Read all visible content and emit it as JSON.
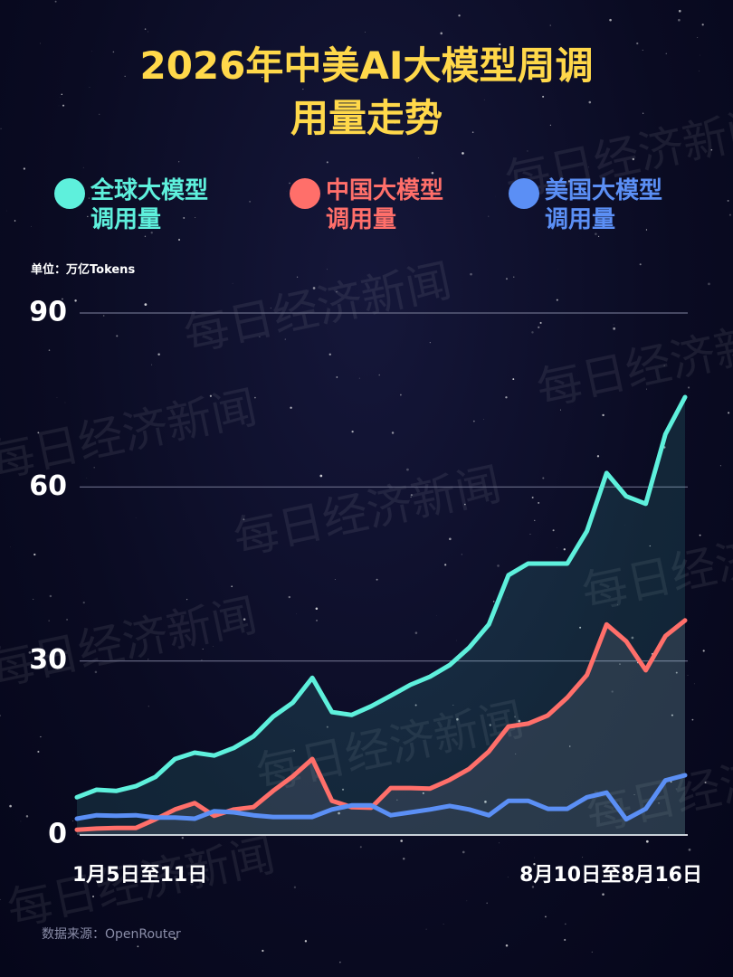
{
  "chart_data": {
    "type": "line",
    "title": "2026年中美AI大模型周调用量走势",
    "unit": "单位：万亿Tokens",
    "source": "数据来源：OpenRouter",
    "watermark": "每日经济新闻",
    "categories": [
      "1月5日至11日",
      null,
      null,
      null,
      null,
      null,
      null,
      null,
      null,
      null,
      null,
      null,
      null,
      null,
      null,
      null,
      null,
      null,
      null,
      null,
      null,
      null,
      null,
      null,
      null,
      null,
      null,
      null,
      null,
      null,
      null,
      "8月10日至8月16日"
    ],
    "series": [
      {
        "name": "全球大模型调用量",
        "color": "#5ef0dc",
        "values": [
          6.5,
          7.8,
          7.6,
          8.4,
          10,
          13.1,
          14.2,
          13.7,
          15,
          17,
          20.4,
          22.8,
          27.1,
          21.2,
          20.7,
          22.2,
          24,
          25.9,
          27.3,
          29.3,
          32.3,
          36.3,
          44.8,
          46.8,
          46.8,
          46.8,
          52.4,
          62.4,
          58.4,
          57.1,
          69.1,
          75.5
        ]
      },
      {
        "name": "中国大模型调用量",
        "color": "#ff6f6a",
        "values": [
          0.9,
          1.1,
          1.2,
          1.2,
          2.7,
          4.4,
          5.5,
          3.3,
          4.4,
          4.8,
          7.6,
          10.1,
          13.1,
          5.9,
          4.8,
          4.7,
          8.1,
          8.1,
          8,
          9.5,
          11.4,
          14.4,
          18.7,
          19.2,
          20.6,
          23.7,
          27.6,
          36.3,
          33.4,
          28.4,
          34.3,
          37
        ]
      },
      {
        "name": "美国大模型调用量",
        "color": "#5b8ff5",
        "values": [
          2.8,
          3.4,
          3.3,
          3.4,
          3,
          3,
          2.8,
          4.1,
          3.9,
          3.4,
          3.1,
          3.1,
          3.1,
          4.4,
          5.1,
          5.1,
          3.4,
          3.9,
          4.4,
          5,
          4.4,
          3.4,
          5.9,
          5.9,
          4.5,
          4.5,
          6.5,
          7.3,
          2.7,
          4.5,
          9.4,
          10.3
        ]
      }
    ],
    "ylim": [
      0,
      90
    ],
    "yticks": [
      0,
      30,
      60,
      90
    ],
    "grid": true
  }
}
